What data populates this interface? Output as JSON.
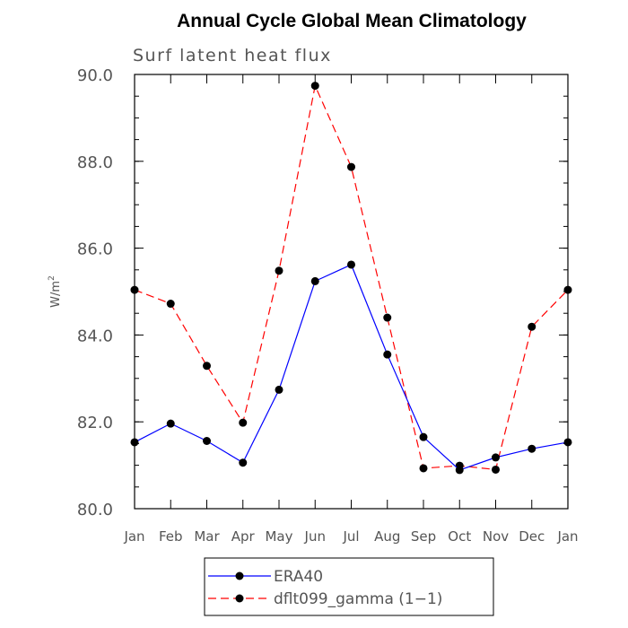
{
  "chart_data": {
    "type": "line",
    "title": "Annual Cycle Global Mean Climatology",
    "subtitle": "Surf latent heat flux",
    "ylabel": "W/m",
    "ylabel_sup": "2",
    "categories": [
      "Jan",
      "Feb",
      "Mar",
      "Apr",
      "May",
      "Jun",
      "Jul",
      "Aug",
      "Sep",
      "Oct",
      "Nov",
      "Dec",
      "Jan"
    ],
    "ylim": [
      80.0,
      90.0
    ],
    "yticks": [
      80.0,
      82.0,
      84.0,
      86.0,
      88.0,
      90.0
    ],
    "ytick_labels": [
      "80.0",
      "82.0",
      "84.0",
      "86.0",
      "88.0",
      "90.0"
    ],
    "grid": false,
    "legend_position": "bottom",
    "series": [
      {
        "name": "ERA40",
        "color": "#0000ff",
        "dash": "solid",
        "marker": "filled-circle",
        "values": [
          81.53,
          81.96,
          81.56,
          81.06,
          82.74,
          85.24,
          85.62,
          83.55,
          81.65,
          80.89,
          81.18,
          81.38,
          81.53
        ]
      },
      {
        "name": "dflt099_gamma (1−1)",
        "color": "#ff0000",
        "dash": "dashed",
        "marker": "filled-circle",
        "values": [
          85.04,
          84.72,
          83.29,
          81.98,
          85.48,
          89.74,
          87.87,
          84.4,
          80.93,
          80.99,
          80.9,
          84.19,
          85.04
        ]
      }
    ]
  }
}
